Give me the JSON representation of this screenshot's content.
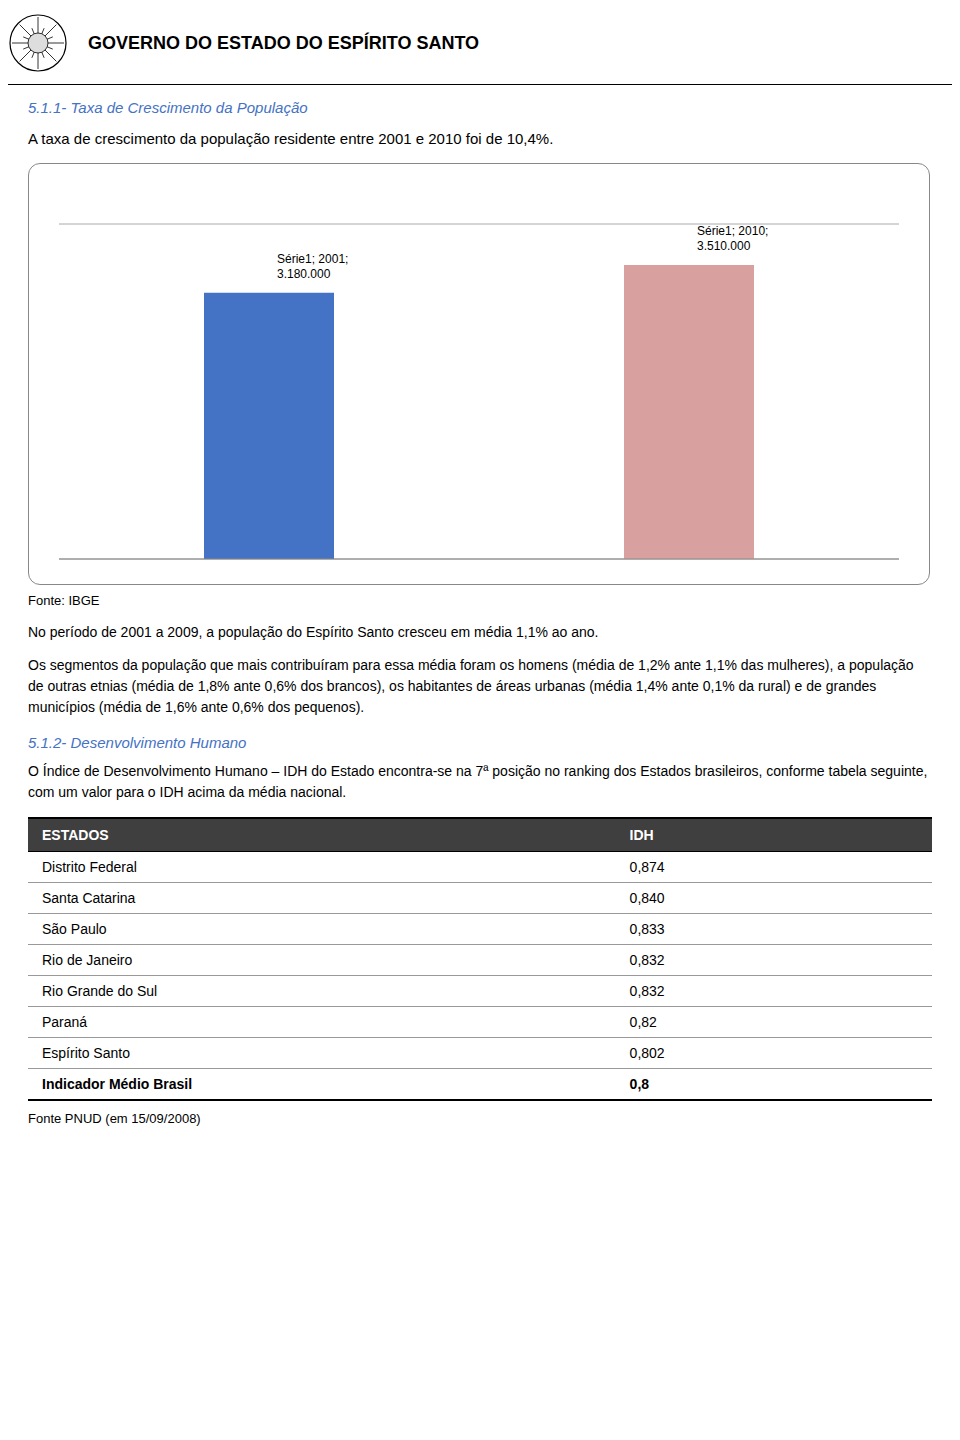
{
  "header_title": "GOVERNO DO ESTADO DO ESPÍRITO SANTO",
  "section_title": "5.1.1- Taxa de Crescimento da População",
  "section_subtitle": "A taxa de crescimento da população residente entre 2001 e 2010 foi de 10,4%.",
  "section_title_color": "#4472C4",
  "chart_data": {
    "type": "bar",
    "categories": [
      "2001",
      "2010"
    ],
    "values": [
      3180000,
      3510000
    ],
    "colors": [
      "#4472C4",
      "#D9A0A0"
    ],
    "value_labels": [
      "Série1; 2001;\n3.180.000",
      "Série1; 2010;\n3.510.000"
    ],
    "data_labels": true,
    "ylim": [
      0,
      4000000
    ],
    "yticks": [
      0,
      500000,
      1000000,
      1500000,
      2000000,
      2500000,
      3000000,
      3500000,
      4000000
    ],
    "grid": true,
    "tick_labels": false
  },
  "fonte_chart": "Fonte: IBGE",
  "paragraphs": [
    "No período de 2001 a 2009, a população do Espírito Santo cresceu em média 1,1% ao ano.",
    "Os segmentos da população que mais contribuíram para essa média foram os homens (média de 1,2% ante 1,1% das mulheres), a população de outras etnias (média de 1,8% ante 0,6% dos brancos), os habitantes de áreas urbanas (média 1,4% ante 0,1% da rural) e de grandes municípios (média de 1,6% ante 0,6% dos pequenos)."
  ],
  "section2_title": "5.1.2- Desenvolvimento Humano",
  "section2_title_color": "#4472C4",
  "section2_paragraph": "O Índice de Desenvolvimento Humano – IDH do Estado encontra-se na 7ª posição no ranking dos Estados brasileiros, conforme tabela seguinte, com um valor para o IDH acima da média nacional.",
  "table": {
    "headers": [
      "ESTADOS",
      "IDH"
    ],
    "rows": [
      [
        "Distrito Federal",
        "0,874"
      ],
      [
        "Santa Catarina",
        "0,840"
      ],
      [
        "São Paulo",
        "0,833"
      ],
      [
        "Rio de Janeiro",
        "0,832"
      ],
      [
        "Rio Grande do Sul",
        "0,832"
      ],
      [
        "Paraná",
        "0,82"
      ],
      [
        "Espírito Santo",
        "0,802"
      ],
      [
        "Indicador Médio Brasil",
        "0,8"
      ]
    ]
  },
  "fonte_table": "Fonte PNUD (em 15/09/2008)"
}
